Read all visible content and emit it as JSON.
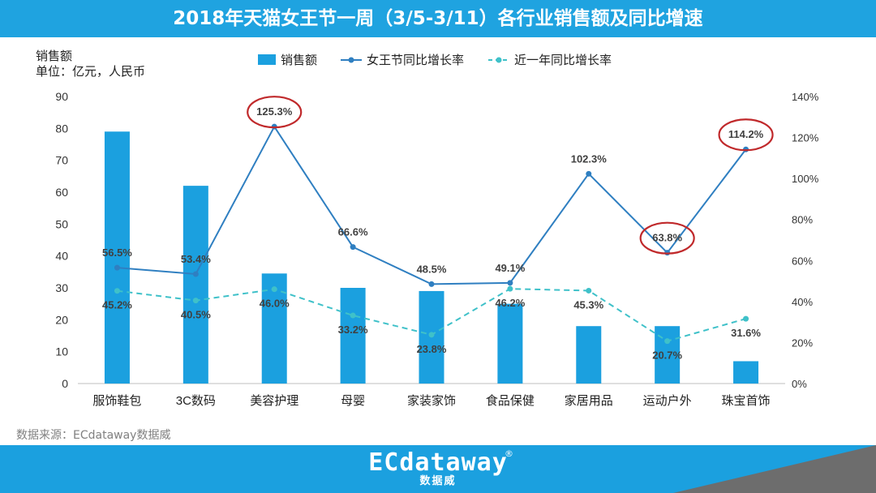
{
  "header": {
    "title": "2018年天猫女王节一周（3/5-3/11）各行业销售额及同比增速"
  },
  "source": "数据来源：ECdataway数据威",
  "logo": {
    "main": "ECdataway",
    "sub": "数据威",
    "reg": "®"
  },
  "colors": {
    "header": "#1fa3e0",
    "bar": "#1ba0df",
    "line_solid": "#2f7fc1",
    "line_dashed": "#3fc1c9",
    "highlight_ring": "#c0292b",
    "footer_corner": "#6d6d6d"
  },
  "chart_data": {
    "type": "bar",
    "ylabel": "销售额",
    "unit_label": "单位：亿元，人民币",
    "categories": [
      "服饰鞋包",
      "3C数码",
      "美容护理",
      "母婴",
      "家装家饰",
      "食品保健",
      "家居用品",
      "运动户外",
      "珠宝首饰"
    ],
    "left_axis": {
      "min": 0,
      "max": 90,
      "ticks": [
        "0",
        "10",
        "20",
        "30",
        "40",
        "50",
        "60",
        "70",
        "80",
        "90"
      ]
    },
    "right_axis": {
      "min": 0,
      "max": 140,
      "ticks": [
        "0%",
        "20%",
        "40%",
        "60%",
        "80%",
        "100%",
        "120%",
        "140%"
      ]
    },
    "legend_position": "top",
    "grid": false,
    "series": [
      {
        "name": "销售额",
        "type": "bar",
        "axis": "left",
        "values": [
          79,
          62,
          34.5,
          30,
          29,
          25,
          18,
          18,
          7
        ]
      },
      {
        "name": "女王节同比增长率",
        "type": "line",
        "axis": "right",
        "values": [
          56.5,
          53.4,
          125.3,
          66.6,
          48.5,
          49.1,
          102.3,
          63.8,
          114.2
        ],
        "labels": [
          "56.5%",
          "53.4%",
          "125.3%",
          "66.6%",
          "48.5%",
          "49.1%",
          "102.3%",
          "63.8%",
          "114.2%"
        ]
      },
      {
        "name": "近一年同比增长率",
        "type": "dashed-line",
        "axis": "right",
        "values": [
          45.2,
          40.5,
          46.0,
          33.2,
          23.8,
          46.2,
          45.3,
          20.7,
          31.6
        ],
        "labels": [
          "45.2%",
          "40.5%",
          "46.0%",
          "33.2%",
          "23.8%",
          "46.2%",
          "45.3%",
          "20.7%",
          "31.6%"
        ]
      }
    ],
    "highlighted_labels": [
      "125.3%",
      "114.2%",
      "63.8%"
    ]
  }
}
